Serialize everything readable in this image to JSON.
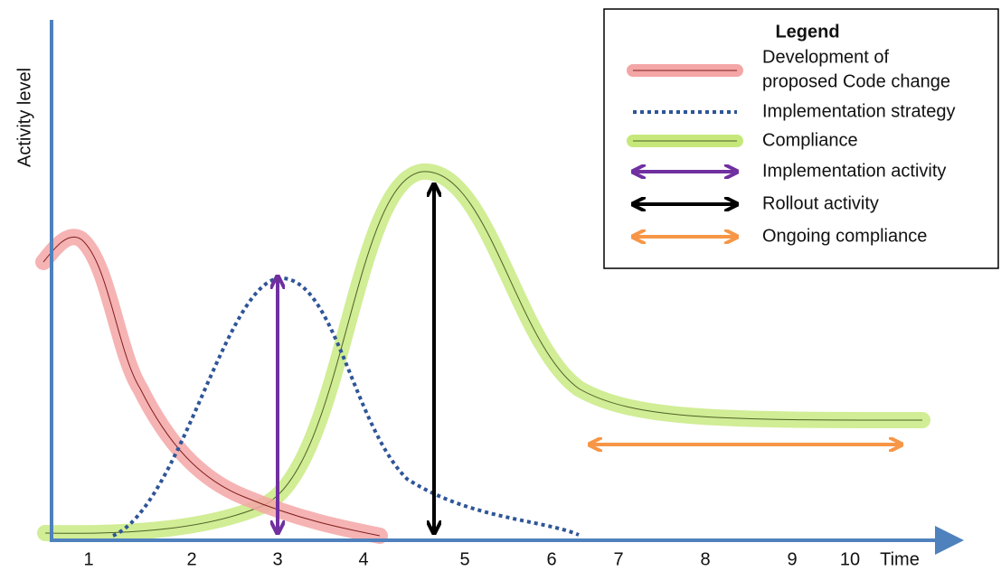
{
  "axes": {
    "y_label": "Activity level",
    "x_label": "Time",
    "x_ticks": [
      "1",
      "2",
      "3",
      "4",
      "5",
      "6",
      "7",
      "8",
      "9",
      "10"
    ]
  },
  "legend": {
    "title": "Legend",
    "items": [
      {
        "label": [
          "Development of",
          "proposed Code change"
        ]
      },
      {
        "label": [
          "Implementation strategy"
        ]
      },
      {
        "label": [
          "Compliance"
        ]
      },
      {
        "label": [
          "Implementation activity"
        ]
      },
      {
        "label": [
          "Rollout activity"
        ]
      },
      {
        "label": [
          "Ongoing compliance"
        ]
      }
    ]
  }
}
